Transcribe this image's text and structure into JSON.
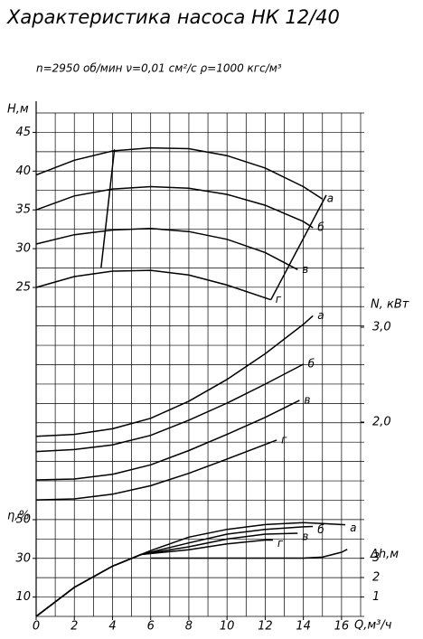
{
  "chart_data": {
    "type": "line",
    "title": "Характеристика насоса НК 12/40",
    "subtitle": "n=2950 об/мин   ν=0,01 см²/с   ρ=1000 кгс/м³",
    "x_label": "Q,м³/ч",
    "xlim": [
      0,
      17
    ],
    "xticks": [
      0,
      2,
      4,
      6,
      8,
      10,
      12,
      14,
      16
    ],
    "color": "#000000",
    "axes": [
      {
        "label": "H,м",
        "side": "left",
        "ylim": [
          25,
          47.5
        ],
        "yticks": [
          25,
          30,
          35,
          40,
          45
        ],
        "series": [
          {
            "name": "а",
            "x": [
              0,
              2,
              4,
              6,
              8,
              10,
              12,
              14,
              15
            ],
            "values": [
              39.5,
              41.4,
              42.6,
              43.0,
              42.9,
              42.0,
              40.4,
              38.0,
              36.4
            ]
          },
          {
            "name": "б",
            "x": [
              0,
              2,
              4,
              6,
              8,
              10,
              12,
              14,
              14.5
            ],
            "values": [
              35,
              36.8,
              37.7,
              38.0,
              37.8,
              37.0,
              35.6,
              33.5,
              32.7
            ]
          },
          {
            "name": "в",
            "x": [
              0,
              2,
              4,
              6,
              8,
              10,
              12,
              13.7
            ],
            "values": [
              30.6,
              31.8,
              32.4,
              32.6,
              32.2,
              31.2,
              29.5,
              27.3
            ]
          },
          {
            "name": "г",
            "x": [
              0,
              2,
              4,
              6,
              8,
              10,
              12.3
            ],
            "values": [
              25.0,
              26.4,
              27.1,
              27.2,
              26.6,
              25.3,
              23.4
            ]
          }
        ],
        "zone_lines": [
          {
            "x": [
              3.4,
              4.1
            ],
            "values": [
              27.5,
              42.8
            ]
          },
          {
            "x": [
              12.3,
              15.2
            ],
            "values": [
              23.4,
              36.9
            ]
          }
        ]
      },
      {
        "label": "N, кВт",
        "side": "right",
        "ylim": [
          1.2,
          3.2
        ],
        "yticks": [
          {
            "value": 2,
            "label": "2,0"
          },
          {
            "value": 3,
            "label": "3,0"
          }
        ],
        "series": [
          {
            "name": "а",
            "x": [
              0,
              2,
              4,
              6,
              8,
              10,
              12,
              14,
              14.5
            ],
            "values": [
              1.85,
              1.87,
              1.93,
              2.04,
              2.22,
              2.45,
              2.72,
              3.03,
              3.12
            ]
          },
          {
            "name": "б",
            "x": [
              0,
              2,
              4,
              6,
              8,
              10,
              12,
              14
            ],
            "values": [
              1.69,
              1.71,
              1.76,
              1.86,
              2.02,
              2.2,
              2.4,
              2.61
            ]
          },
          {
            "name": "в",
            "x": [
              0,
              2,
              4,
              6,
              8,
              10,
              12,
              13.8
            ],
            "values": [
              1.39,
              1.4,
              1.45,
              1.55,
              1.7,
              1.87,
              2.05,
              2.23
            ]
          },
          {
            "name": "г",
            "x": [
              0,
              2,
              4,
              6,
              8,
              10,
              12.6
            ],
            "values": [
              1.18,
              1.19,
              1.24,
              1.33,
              1.46,
              1.61,
              1.81
            ]
          }
        ]
      },
      {
        "label": "η,%",
        "side": "left",
        "ylim": [
          0,
          50
        ],
        "yticks": [
          10,
          30,
          50
        ],
        "series": [
          {
            "name": "а",
            "x": [
              0,
              2,
              4,
              5.5,
              6,
              8,
              10,
              12,
              14,
              15,
              16.2
            ],
            "values": [
              0,
              15,
              26,
              32,
              34,
              41,
              45,
              47.5,
              48.5,
              48,
              47.4
            ]
          },
          {
            "name": "б",
            "x": [
              0,
              2,
              4,
              5.5,
              8,
              10,
              12,
              14,
              14.5
            ],
            "values": [
              0,
              15,
              26,
              32,
              38,
              42.5,
              45,
              46.3,
              46.5
            ]
          },
          {
            "name": "в",
            "x": [
              0,
              2,
              4,
              5.5,
              8,
              10,
              12,
              13.7
            ],
            "values": [
              0,
              15,
              26,
              32,
              36,
              40,
              42.5,
              43
            ]
          },
          {
            "name": "г",
            "x": [
              0,
              2,
              4,
              5.5,
              8,
              10,
              12,
              12.4
            ],
            "values": [
              0,
              15,
              26,
              32,
              34.5,
              37.5,
              39.5,
              39.5
            ]
          }
        ]
      },
      {
        "label": "Δh,м",
        "side": "right",
        "ylim": [
          0,
          3
        ],
        "yticks": [
          1,
          2,
          3
        ],
        "series": [
          {
            "x": [
              6,
              10,
              14,
              15,
              16,
              16.3
            ],
            "values": [
              3.0,
              3.0,
              3.0,
              3.05,
              3.3,
              3.45
            ]
          }
        ]
      }
    ]
  }
}
